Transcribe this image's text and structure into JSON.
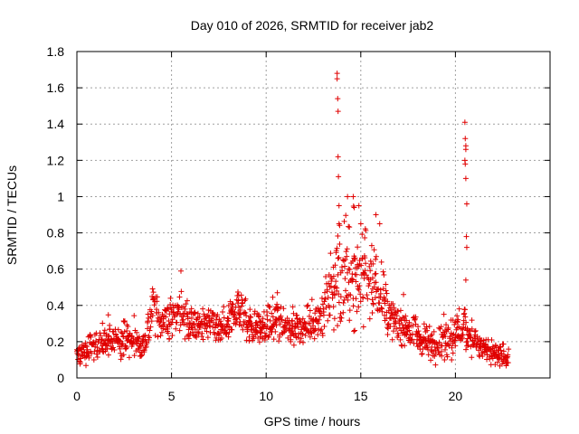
{
  "chart_data": {
    "type": "scatter",
    "title": "Day 010 of 2026, SRMTID for receiver jab2",
    "xlabel": "GPS time / hours",
    "ylabel": "SRMTID / TECUs",
    "xlim": [
      0,
      25
    ],
    "ylim": [
      0,
      1.8
    ],
    "xticks": [
      0,
      5,
      10,
      15,
      20
    ],
    "xtick_labels": [
      "0",
      "5",
      "10",
      "15",
      "20"
    ],
    "yticks": [
      0,
      0.2,
      0.4,
      0.6,
      0.8,
      1,
      1.2,
      1.4,
      1.6,
      1.8
    ],
    "ytick_labels": [
      "0",
      "0.2",
      "0.4",
      "0.6",
      "0.8",
      "1",
      "1.2",
      "1.4",
      "1.6",
      "1.8"
    ],
    "grid": true,
    "marker": "+",
    "color": "#e00000",
    "envelope": {
      "description_hours": "approximate running level of SRMTID vs GPS time",
      "x": [
        0,
        0.5,
        1,
        1.5,
        2,
        2.5,
        3,
        3.5,
        3.8,
        4,
        4.5,
        5,
        5.5,
        6,
        6.5,
        7,
        7.5,
        8,
        8.5,
        9,
        9.5,
        10,
        10.5,
        11,
        11.5,
        12,
        12.5,
        13,
        13.5,
        14,
        14.5,
        15,
        15.5,
        16,
        16.5,
        17,
        17.5,
        18,
        18.5,
        19,
        19.5,
        20,
        20.5,
        21,
        21.5,
        22,
        22.5,
        22.8
      ],
      "y": [
        0.13,
        0.15,
        0.18,
        0.2,
        0.19,
        0.22,
        0.2,
        0.18,
        0.25,
        0.38,
        0.3,
        0.32,
        0.38,
        0.3,
        0.28,
        0.3,
        0.27,
        0.28,
        0.4,
        0.3,
        0.28,
        0.27,
        0.33,
        0.3,
        0.27,
        0.28,
        0.32,
        0.35,
        0.5,
        0.6,
        0.55,
        0.58,
        0.52,
        0.5,
        0.35,
        0.3,
        0.27,
        0.22,
        0.2,
        0.18,
        0.22,
        0.25,
        0.3,
        0.2,
        0.16,
        0.13,
        0.12,
        0.12
      ],
      "spread": [
        0.05,
        0.06,
        0.06,
        0.07,
        0.06,
        0.07,
        0.07,
        0.06,
        0.1,
        0.1,
        0.08,
        0.08,
        0.1,
        0.08,
        0.07,
        0.08,
        0.07,
        0.08,
        0.12,
        0.08,
        0.07,
        0.07,
        0.1,
        0.08,
        0.07,
        0.07,
        0.1,
        0.12,
        0.2,
        0.25,
        0.22,
        0.2,
        0.18,
        0.18,
        0.1,
        0.08,
        0.08,
        0.07,
        0.07,
        0.07,
        0.09,
        0.1,
        0.1,
        0.07,
        0.06,
        0.05,
        0.05,
        0.05
      ]
    },
    "outliers": {
      "x": [
        13.75,
        13.75,
        13.78,
        13.8,
        13.8,
        13.82,
        13.85,
        13.85,
        14.3,
        14.6,
        14.65,
        14.9,
        15.8,
        16,
        20.5,
        20.52,
        20.55,
        20.55,
        20.5,
        20.52,
        20.55,
        20.6,
        20.58,
        20.6,
        20.55
      ],
      "y": [
        1.68,
        1.65,
        1.54,
        1.47,
        1.22,
        1.11,
        0.95,
        0.85,
        1.0,
        1.0,
        0.94,
        0.95,
        0.9,
        0.85,
        1.41,
        1.32,
        1.28,
        1.26,
        1.2,
        1.18,
        1.1,
        0.96,
        0.78,
        0.72,
        0.54
      ]
    }
  }
}
